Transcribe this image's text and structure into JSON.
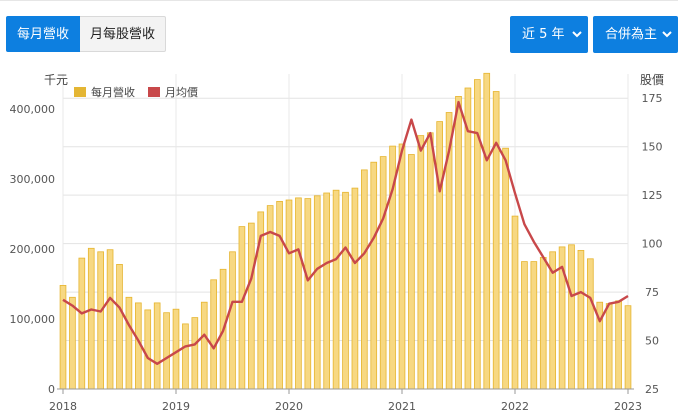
{
  "tabs": {
    "active": "每月營收",
    "inactive": "月每股營收"
  },
  "dropdowns": {
    "period": "近 5 年",
    "scope": "合併為主",
    "chevron": "chevron-down-icon"
  },
  "colors": {
    "accent": "#0d7fe0",
    "bar": "#f7d882",
    "bar_edge": "#e6b52f",
    "line": "#c8484a"
  },
  "chart_data": {
    "type": "bar",
    "left_axis": {
      "label": "千元",
      "ylim": [
        0,
        450000
      ],
      "ticks": [
        0,
        100000,
        200000,
        300000,
        400000
      ],
      "tick_labels": [
        "0",
        "100,000",
        "200,000",
        "300,000",
        "400,000"
      ]
    },
    "right_axis": {
      "label": "股價",
      "ylim": [
        25,
        187.5
      ],
      "ticks": [
        25,
        50,
        75,
        100,
        125,
        150,
        175
      ],
      "tick_labels": [
        "25",
        "50",
        "75",
        "100",
        "125",
        "150",
        "175"
      ]
    },
    "x_tick_labels": [
      "2018",
      "2019",
      "2020",
      "2021",
      "2022",
      "2023"
    ],
    "grid": true,
    "legend_position": "top-left",
    "series": [
      {
        "name": "每月營收",
        "kind": "bar",
        "axis": "left",
        "values": [
          148000,
          131000,
          187000,
          201000,
          196000,
          199000,
          178000,
          131000,
          123000,
          113000,
          123000,
          109000,
          114000,
          93000,
          102000,
          124000,
          156000,
          171000,
          196000,
          232000,
          237000,
          253000,
          262000,
          268000,
          270000,
          273000,
          272000,
          276000,
          280000,
          284000,
          281000,
          287000,
          313000,
          324000,
          332000,
          347000,
          350000,
          335000,
          362000,
          366000,
          382000,
          395000,
          418000,
          430000,
          442000,
          451000,
          425000,
          344000,
          247000,
          182000,
          182000,
          188000,
          196000,
          203000,
          206000,
          198000,
          186000,
          124000,
          122000,
          126000,
          119000
        ]
      },
      {
        "name": "月均價",
        "kind": "line",
        "axis": "right",
        "values": [
          71,
          68,
          64,
          66,
          65,
          72,
          67,
          58,
          50,
          41,
          38,
          41,
          44,
          47,
          48,
          53,
          46,
          55,
          70,
          70,
          82,
          104,
          106,
          104,
          95,
          97,
          81,
          87,
          90,
          92,
          98,
          90,
          95,
          103,
          113,
          128,
          148,
          164,
          148,
          157,
          127,
          148,
          173,
          158,
          157,
          143,
          152,
          143,
          126,
          110,
          101,
          93,
          85,
          88,
          73,
          75,
          72,
          60,
          69,
          70,
          73
        ]
      }
    ]
  }
}
